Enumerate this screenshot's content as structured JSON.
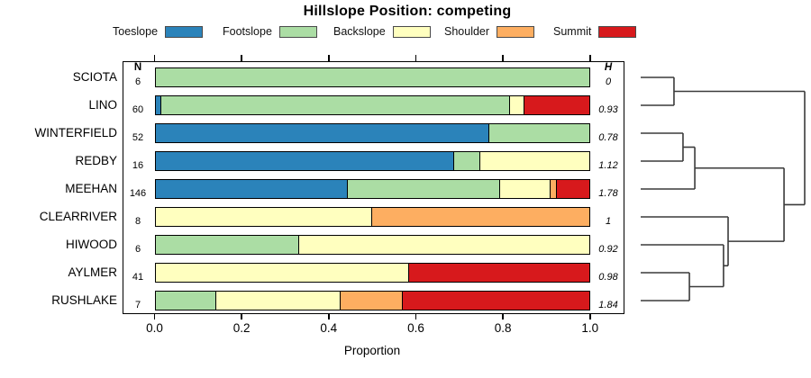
{
  "chart_data": {
    "type": "bar",
    "stacked": true,
    "orientation": "horizontal",
    "title": "Hillslope Position: competing",
    "xlabel": "Proportion",
    "xlim": [
      0,
      1
    ],
    "xtick_labels": [
      "0.0",
      "0.2",
      "0.4",
      "0.6",
      "0.8",
      "1.0"
    ],
    "n_header": "N",
    "h_header": "H",
    "legend": [
      "Toeslope",
      "Footslope",
      "Backslope",
      "Shoulder",
      "Summit"
    ],
    "colors": {
      "Toeslope": "#2B83BA",
      "Footslope": "#ABDDA4",
      "Backslope": "#FFFFBF",
      "Shoulder": "#FDAE61",
      "Summit": "#D7191C"
    },
    "rows": [
      {
        "label": "SCIOTA",
        "n": "6",
        "h": "0",
        "segments": [
          0,
          1,
          0,
          0,
          0
        ]
      },
      {
        "label": "LINO",
        "n": "60",
        "h": "0.93",
        "segments": [
          0.017,
          0.8,
          0.033,
          0,
          0.15
        ]
      },
      {
        "label": "WINTERFIELD",
        "n": "52",
        "h": "0.78",
        "segments": [
          0.769,
          0.231,
          0,
          0,
          0
        ]
      },
      {
        "label": "REDBY",
        "n": "16",
        "h": "1.12",
        "segments": [
          0.688,
          0.062,
          0.25,
          0,
          0
        ]
      },
      {
        "label": "MEEHAN",
        "n": "146",
        "h": "1.78",
        "segments": [
          0.445,
          0.349,
          0.116,
          0.014,
          0.075
        ]
      },
      {
        "label": "CLEARRIVER",
        "n": "8",
        "h": "1",
        "segments": [
          0,
          0,
          0.5,
          0.5,
          0
        ]
      },
      {
        "label": "HIWOOD",
        "n": "6",
        "h": "0.92",
        "segments": [
          0,
          0.333,
          0.667,
          0,
          0
        ]
      },
      {
        "label": "AYLMER",
        "n": "41",
        "h": "0.98",
        "segments": [
          0,
          0,
          0.585,
          0,
          0.415
        ]
      },
      {
        "label": "RUSHLAKE",
        "n": "7",
        "h": "1.84",
        "segments": [
          0,
          0.143,
          0.286,
          0.143,
          0.428
        ]
      }
    ],
    "dendrogram": {
      "leaf_order": [
        "SCIOTA",
        "LINO",
        "WINTERFIELD",
        "REDBY",
        "MEEHAN",
        "CLEARRIVER",
        "HIWOOD",
        "AYLMER",
        "RUSHLAKE"
      ],
      "merges": [
        {
          "id": "n1",
          "a": "SCIOTA",
          "b": "LINO",
          "h": 0.203
        },
        {
          "id": "n2",
          "a": "WINTERFIELD",
          "b": "REDBY",
          "h": 0.258
        },
        {
          "id": "n3",
          "a": "n2",
          "b": "MEEHAN",
          "h": 0.33
        },
        {
          "id": "n4",
          "a": "AYLMER",
          "b": "RUSHLAKE",
          "h": 0.297
        },
        {
          "id": "n5",
          "a": "HIWOOD",
          "b": "n4",
          "h": 0.505
        },
        {
          "id": "n6",
          "a": "CLEARRIVER",
          "b": "n5",
          "h": 0.533
        },
        {
          "id": "n7",
          "a": "n3",
          "b": "n6",
          "h": 0.874
        },
        {
          "id": "n8",
          "a": "n1",
          "b": "n7",
          "h": 1.0
        }
      ]
    }
  }
}
